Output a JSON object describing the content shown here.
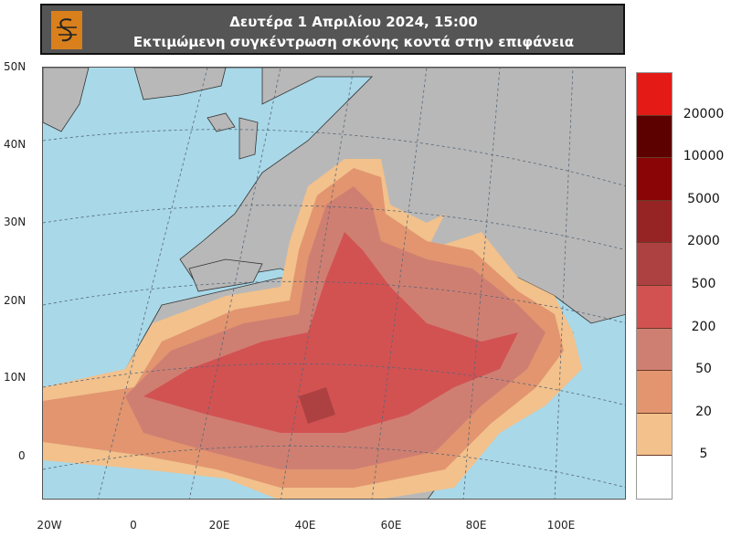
{
  "header": {
    "logo": "dust-forecast-logo",
    "line1": "Δευτέρα 1 Απριλίου 2024, 15:00",
    "line2": "Εκτιμώμενη συγκέντρωση σκόνης κοντά στην επιφάνεια"
  },
  "map": {
    "lat_labels": [
      "50N",
      "40N",
      "30N",
      "20N",
      "10N",
      "0"
    ],
    "lon_labels": [
      "20W",
      "0",
      "20E",
      "40E",
      "60E",
      "80E",
      "100E"
    ],
    "colors": {
      "ocean": "#a9d8e8",
      "land": "#b8b8b8"
    }
  },
  "legend": {
    "colors": [
      "#e31a16",
      "#5c0000",
      "#8a0505",
      "#962424",
      "#ad4141",
      "#d25252",
      "#cf7f72",
      "#e2956f",
      "#f2c18c",
      "#ffffff"
    ],
    "labels": [
      "20000",
      "10000",
      "5000",
      "2000",
      "500",
      "200",
      "50",
      "20",
      "5"
    ]
  }
}
